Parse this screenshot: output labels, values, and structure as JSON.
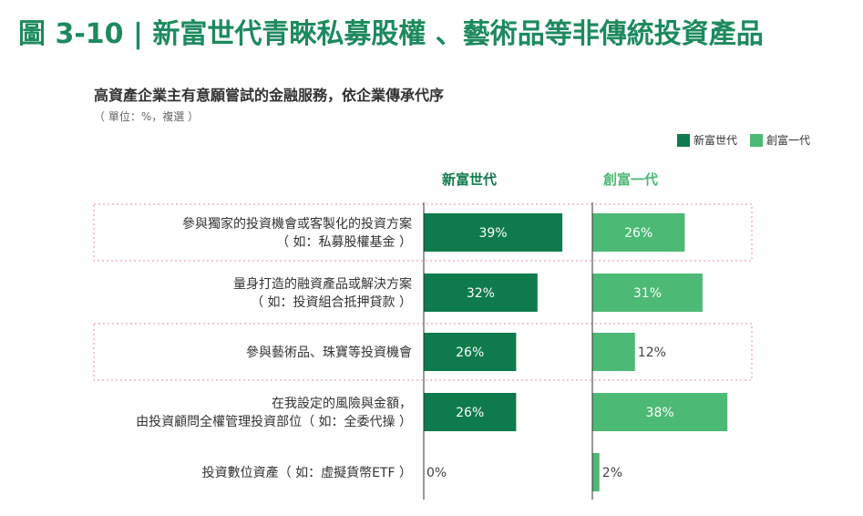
{
  "page_title": "圖 3-10 | 新富世代青睞私募股權 、藝術品等非傳統投資產品",
  "colors": {
    "title": "#1d8a5e",
    "new_wealth": "#0f7a4c",
    "founder": "#4cb974",
    "highlight_border": "#e58ca3",
    "axis": "#333333"
  },
  "chart_data": {
    "type": "bar",
    "orientation": "horizontal",
    "title": "高資產企業主有意願嘗試的金融服務，依企業傳承代序",
    "unit_note": "（ 單位：%，複選 ）",
    "legend_position": "top-right",
    "categories": [
      [
        "參與獨家的投資機會或客製化的投資方案",
        "（ 如：私募股權基金 ）"
      ],
      [
        "量身打造的融資產品或解決方案",
        "（ 如：投資組合抵押貸款 ）"
      ],
      [
        "參與藝術品、珠寶等投資機會"
      ],
      [
        "在我設定的風險與金額，",
        "由投資顧問全權管理投資部位（ 如：全委代操 ）"
      ],
      [
        "投資數位資產（ 如：虛擬貨幣ETF ）"
      ]
    ],
    "highlighted": [
      true,
      false,
      true,
      false,
      false
    ],
    "series": [
      {
        "name": "新富世代",
        "values": [
          39,
          32,
          26,
          26,
          0
        ],
        "labels": [
          "39%",
          "32%",
          "26%",
          "26%",
          "0%"
        ]
      },
      {
        "name": "創富一代",
        "values": [
          26,
          31,
          12,
          38,
          2
        ],
        "labels": [
          "26%",
          "31%",
          "12%",
          "38%",
          "2%"
        ]
      }
    ],
    "xlim": [
      0,
      50
    ]
  }
}
